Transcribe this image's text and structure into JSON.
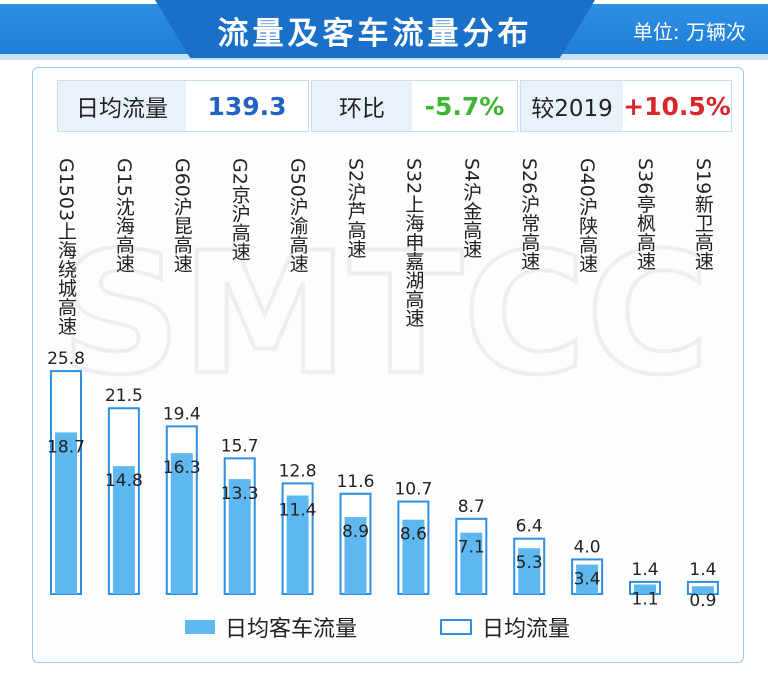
{
  "header": {
    "title": "流量及客车流量分布",
    "unit": "单位: 万辆次"
  },
  "stats": {
    "daily_flow": {
      "label": "日均流量",
      "value": "139.3"
    },
    "mom": {
      "label": "环比",
      "value": "-5.7%"
    },
    "yoy": {
      "label": "较2019",
      "value": "+10.5%"
    }
  },
  "colors": {
    "accent": "#1f7fd8",
    "bar_fill": "#5eb7ee",
    "bar_outline": "#2f8fe3",
    "negative": "#3cb531",
    "positive": "#d9252b"
  },
  "watermark": "SMTCC",
  "chart_data": {
    "type": "bar",
    "categories": [
      "G1503上海绕城高速",
      "G15沈海高速",
      "G60沪昆高速",
      "G2京沪高速",
      "G50沪渝高速",
      "S2沪芦高速",
      "S32上海申嘉湖高速",
      "S4沪金高速",
      "S26沪常高速",
      "G40沪陕高速",
      "S36亭枫高速",
      "S19新卫高速"
    ],
    "series": [
      {
        "name": "日均客车流量",
        "values": [
          18.7,
          14.8,
          16.3,
          13.3,
          11.4,
          8.9,
          8.6,
          7.1,
          5.3,
          3.4,
          1.1,
          0.9
        ]
      },
      {
        "name": "日均流量",
        "values": [
          25.8,
          21.5,
          19.4,
          15.7,
          12.8,
          11.6,
          10.7,
          8.7,
          6.4,
          4.0,
          1.4,
          1.4
        ]
      }
    ],
    "legend": "bottom"
  }
}
